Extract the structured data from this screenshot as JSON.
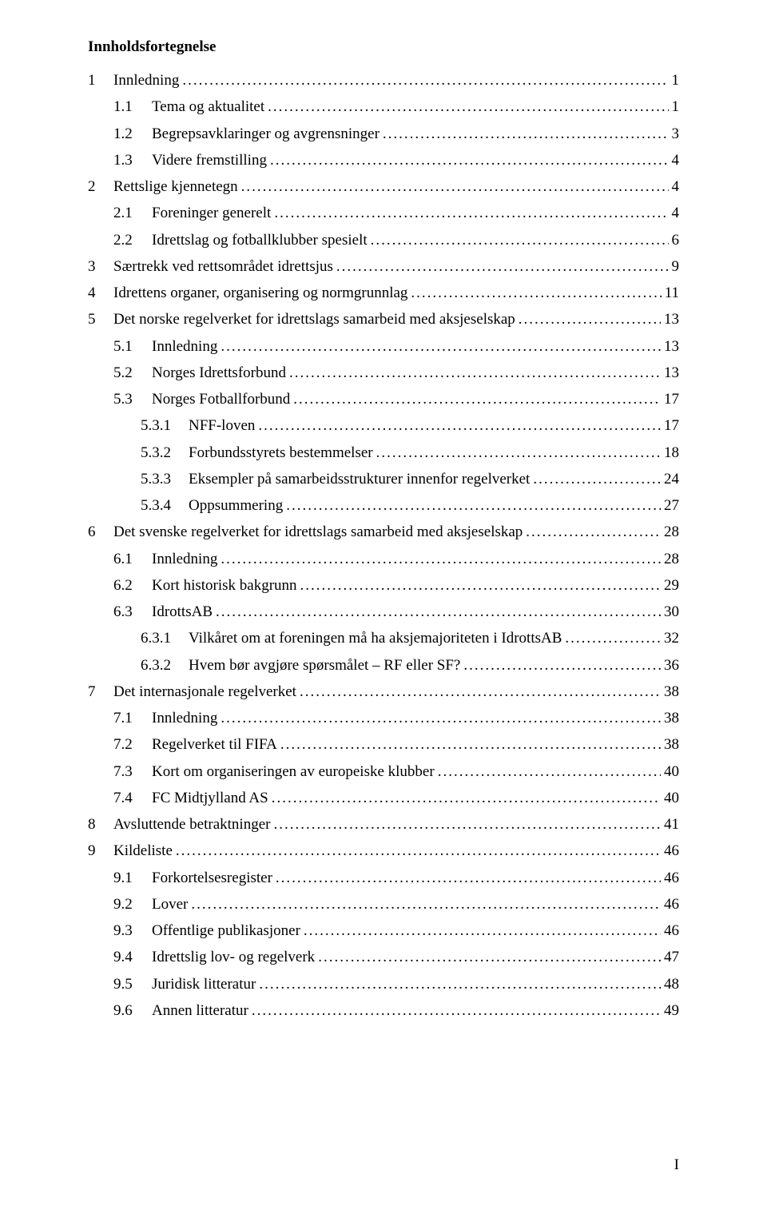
{
  "title": "Innholdsfortegnelse",
  "page_number_roman": "I",
  "toc": [
    {
      "level": 1,
      "num": "1",
      "label": "Innledning",
      "page": "1"
    },
    {
      "level": 2,
      "num": "1.1",
      "label": "Tema og aktualitet",
      "page": "1"
    },
    {
      "level": 2,
      "num": "1.2",
      "label": "Begrepsavklaringer og avgrensninger",
      "page": "3"
    },
    {
      "level": 2,
      "num": "1.3",
      "label": "Videre fremstilling",
      "page": "4"
    },
    {
      "level": 1,
      "num": "2",
      "label": "Rettslige kjennetegn",
      "page": "4"
    },
    {
      "level": 2,
      "num": "2.1",
      "label": "Foreninger generelt",
      "page": "4"
    },
    {
      "level": 2,
      "num": "2.2",
      "label": "Idrettslag og fotballklubber spesielt",
      "page": "6"
    },
    {
      "level": 1,
      "num": "3",
      "label": "Særtrekk ved rettsområdet idrettsjus",
      "page": "9"
    },
    {
      "level": 1,
      "num": "4",
      "label": "Idrettens organer, organisering og normgrunnlag",
      "page": "11"
    },
    {
      "level": 1,
      "num": "5",
      "label": "Det norske regelverket for idrettslags samarbeid med aksjeselskap",
      "page": "13"
    },
    {
      "level": 2,
      "num": "5.1",
      "label": "Innledning",
      "page": "13"
    },
    {
      "level": 2,
      "num": "5.2",
      "label": "Norges Idrettsforbund",
      "page": "13"
    },
    {
      "level": 2,
      "num": "5.3",
      "label": "Norges Fotballforbund",
      "page": "17"
    },
    {
      "level": 3,
      "num": "5.3.1",
      "label": "NFF-loven",
      "page": "17"
    },
    {
      "level": 3,
      "num": "5.3.2",
      "label": "Forbundsstyrets bestemmelser",
      "page": "18"
    },
    {
      "level": 3,
      "num": "5.3.3",
      "label": "Eksempler på samarbeidsstrukturer innenfor regelverket",
      "page": "24"
    },
    {
      "level": 3,
      "num": "5.3.4",
      "label": "Oppsummering",
      "page": "27"
    },
    {
      "level": 1,
      "num": "6",
      "label": "Det svenske regelverket for idrettslags samarbeid med aksjeselskap",
      "page": "28"
    },
    {
      "level": 2,
      "num": "6.1",
      "label": "Innledning",
      "page": "28"
    },
    {
      "level": 2,
      "num": "6.2",
      "label": "Kort historisk bakgrunn",
      "page": "29"
    },
    {
      "level": 2,
      "num": "6.3",
      "label": "IdrottsAB",
      "page": "30"
    },
    {
      "level": 3,
      "num": "6.3.1",
      "label": "Vilkåret om at foreningen må ha aksjemajoriteten i IdrottsAB",
      "page": "32"
    },
    {
      "level": 3,
      "num": "6.3.2",
      "label": "Hvem bør avgjøre spørsmålet – RF eller SF?",
      "page": "36"
    },
    {
      "level": 1,
      "num": "7",
      "label": "Det internasjonale regelverket",
      "page": "38"
    },
    {
      "level": 2,
      "num": "7.1",
      "label": "Innledning",
      "page": "38"
    },
    {
      "level": 2,
      "num": "7.2",
      "label": "Regelverket til FIFA",
      "page": "38"
    },
    {
      "level": 2,
      "num": "7.3",
      "label": "Kort om organiseringen av europeiske klubber",
      "page": "40"
    },
    {
      "level": 2,
      "num": "7.4",
      "label": "FC Midtjylland AS",
      "page": "40"
    },
    {
      "level": 1,
      "num": "8",
      "label": "Avsluttende betraktninger",
      "page": "41"
    },
    {
      "level": 1,
      "num": "9",
      "label": "Kildeliste",
      "page": "46"
    },
    {
      "level": 2,
      "num": "9.1",
      "label": "Forkortelsesregister",
      "page": "46"
    },
    {
      "level": 2,
      "num": "9.2",
      "label": "Lover",
      "page": "46"
    },
    {
      "level": 2,
      "num": "9.3",
      "label": "Offentlige publikasjoner",
      "page": "46"
    },
    {
      "level": 2,
      "num": "9.4",
      "label": "Idrettslig lov- og regelverk",
      "page": "47"
    },
    {
      "level": 2,
      "num": "9.5",
      "label": "Juridisk litteratur",
      "page": "48"
    },
    {
      "level": 2,
      "num": "9.6",
      "label": "Annen litteratur",
      "page": "49"
    }
  ]
}
